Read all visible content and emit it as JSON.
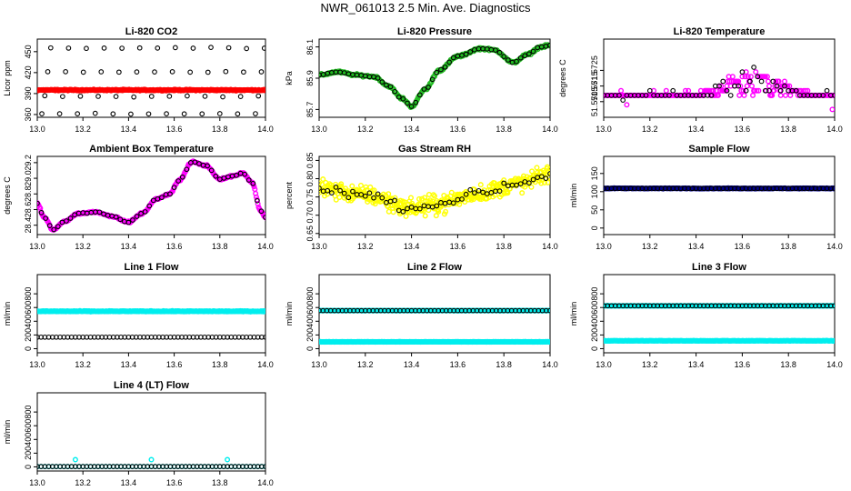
{
  "figure": {
    "title": "NWR_061013  2.5 Min. Ave. Diagnostics"
  },
  "colors": {
    "black": "#000000",
    "red": "#ff0000",
    "green": "#22bb22",
    "magenta": "#ff00ff",
    "yellow": "#ffff00",
    "navy": "#00008b",
    "cyan": "#00eeee"
  },
  "chart_data": [
    {
      "id": "co2",
      "type": "scatter",
      "title": "Li-820 CO2",
      "ylabel": "Licor ppm",
      "xlim": [
        13.0,
        14.0
      ],
      "ylim": [
        356,
        468
      ],
      "xticks": [
        "13.0",
        "13.2",
        "13.4",
        "13.6",
        "13.8",
        "14.0"
      ],
      "yticks": [
        {
          "v": 360,
          "l": "360"
        },
        {
          "v": 390,
          "l": "390"
        },
        {
          "v": 420,
          "l": "420"
        },
        {
          "v": 450,
          "l": "450"
        }
      ],
      "series": [
        {
          "name": "CO2 standards",
          "color": "black",
          "gen": "co2_levels",
          "levels": [
            361,
            386,
            421,
            455
          ]
        },
        {
          "name": "CO2 ambient",
          "color": "red",
          "gen": "flat_band",
          "base": 395,
          "noise": 1.2
        }
      ]
    },
    {
      "id": "pressure",
      "type": "scatter",
      "title": "Li-820 Pressure",
      "ylabel": "kPa",
      "xlim": [
        13.0,
        14.0
      ],
      "ylim": [
        85.65,
        86.15
      ],
      "xticks": [
        "13.0",
        "13.2",
        "13.4",
        "13.6",
        "13.8",
        "14.0"
      ],
      "yticks": [
        {
          "v": 85.7,
          "l": "85.7"
        },
        {
          "v": 85.9,
          "l": "85.9"
        },
        {
          "v": 86.1,
          "l": "86.1"
        }
      ],
      "series": [
        {
          "name": "pressure",
          "color": "green",
          "gen": "curve",
          "jitter": 0.01,
          "knots": [
            [
              13.0,
              85.92
            ],
            [
              13.08,
              85.94
            ],
            [
              13.16,
              85.92
            ],
            [
              13.24,
              85.91
            ],
            [
              13.3,
              85.85
            ],
            [
              13.36,
              85.77
            ],
            [
              13.4,
              85.72
            ],
            [
              13.46,
              85.83
            ],
            [
              13.52,
              85.95
            ],
            [
              13.6,
              86.04
            ],
            [
              13.7,
              86.09
            ],
            [
              13.76,
              86.08
            ],
            [
              13.84,
              86.0
            ],
            [
              13.9,
              86.05
            ],
            [
              13.96,
              86.1
            ],
            [
              14.0,
              86.11
            ]
          ]
        },
        {
          "name": "pressure markers",
          "color": "black",
          "gen": "curve_sparse",
          "of": 0
        }
      ]
    },
    {
      "id": "licor_temp",
      "type": "scatter",
      "title": "Li-820 Temperature",
      "ylabel": "degrees C",
      "xlim": [
        13.0,
        14.0
      ],
      "ylim": [
        51.5695,
        51.5745
      ],
      "xticks": [
        "13.0",
        "13.2",
        "13.4",
        "13.6",
        "13.8",
        "14.0"
      ],
      "yticks": [
        {
          "v": 51.5705,
          "l": "51.5705"
        },
        {
          "v": 51.5715,
          "l": "51.5715"
        },
        {
          "v": 51.5725,
          "l": "51.5725"
        }
      ],
      "series": [
        {
          "name": "temperature",
          "color": "magenta",
          "gen": "quantized",
          "base": 51.5709,
          "step": 0.0003
        },
        {
          "name": "temperature markers",
          "color": "black",
          "gen": "quantized_sparse",
          "base": 51.5709,
          "step": 0.0003
        }
      ]
    },
    {
      "id": "box_temp",
      "type": "scatter",
      "title": "Ambient Box Temperature",
      "ylabel": "degrees C",
      "xlim": [
        13.0,
        14.0
      ],
      "ylim": [
        28.28,
        29.28
      ],
      "xticks": [
        "13.0",
        "13.2",
        "13.4",
        "13.6",
        "13.8",
        "14.0"
      ],
      "yticks": [
        {
          "v": 28.4,
          "l": "28.4"
        },
        {
          "v": 28.6,
          "l": "28.6"
        },
        {
          "v": 28.8,
          "l": "28.8"
        },
        {
          "v": 29.0,
          "l": "29.0"
        },
        {
          "v": 29.2,
          "l": "29.2"
        }
      ],
      "series": [
        {
          "name": "box temperature",
          "color": "magenta",
          "gen": "curve",
          "jitter": 0.015,
          "knots": [
            [
              13.0,
              28.68
            ],
            [
              13.03,
              28.5
            ],
            [
              13.07,
              28.34
            ],
            [
              13.12,
              28.45
            ],
            [
              13.18,
              28.55
            ],
            [
              13.26,
              28.57
            ],
            [
              13.32,
              28.52
            ],
            [
              13.4,
              28.44
            ],
            [
              13.46,
              28.55
            ],
            [
              13.52,
              28.73
            ],
            [
              13.58,
              28.8
            ],
            [
              13.62,
              28.97
            ],
            [
              13.68,
              29.21
            ],
            [
              13.74,
              29.16
            ],
            [
              13.8,
              28.99
            ],
            [
              13.86,
              29.03
            ],
            [
              13.9,
              29.07
            ],
            [
              13.94,
              28.95
            ],
            [
              13.98,
              28.58
            ],
            [
              14.0,
              28.5
            ]
          ]
        },
        {
          "name": "box temperature markers",
          "color": "black",
          "gen": "curve_sparse",
          "of": 0
        }
      ]
    },
    {
      "id": "rh",
      "type": "scatter",
      "title": "Gas Stream RH",
      "ylabel": "percent",
      "xlim": [
        13.0,
        14.0
      ],
      "ylim": [
        0.647,
        0.861
      ],
      "xticks": [
        "13.0",
        "13.2",
        "13.4",
        "13.6",
        "13.8",
        "14.0"
      ],
      "yticks": [
        {
          "v": 0.65,
          "l": "0.65"
        },
        {
          "v": 0.7,
          "l": "0.70"
        },
        {
          "v": 0.75,
          "l": "0.75"
        },
        {
          "v": 0.8,
          "l": "0.80"
        },
        {
          "v": 0.85,
          "l": "0.85"
        }
      ],
      "series": [
        {
          "name": "relative humidity",
          "color": "yellow",
          "gen": "noisy_curve",
          "spread": 0.035,
          "knots": [
            [
              13.0,
              0.775
            ],
            [
              13.2,
              0.755
            ],
            [
              13.4,
              0.72
            ],
            [
              13.5,
              0.73
            ],
            [
              13.7,
              0.76
            ],
            [
              13.85,
              0.785
            ],
            [
              14.0,
              0.81
            ]
          ]
        },
        {
          "name": "relative humidity markers",
          "color": "black",
          "gen": "curve_sparse_noisy",
          "of": 0,
          "spread": 0.018
        }
      ]
    },
    {
      "id": "sample_flow",
      "type": "scatter",
      "title": "Sample Flow",
      "ylabel": "ml/min",
      "xlim": [
        13.0,
        14.0
      ],
      "ylim": [
        -18,
        197
      ],
      "xticks": [
        "13.0",
        "13.2",
        "13.4",
        "13.6",
        "13.8",
        "14.0"
      ],
      "yticks": [
        {
          "v": 0,
          "l": "0"
        },
        {
          "v": 50,
          "l": "50"
        },
        {
          "v": 100,
          "l": "100"
        },
        {
          "v": 150,
          "l": "150"
        }
      ],
      "series": [
        {
          "name": "sample flow",
          "color": "navy",
          "gen": "flat_band",
          "base": 109,
          "noise": 1.2
        },
        {
          "name": "sample flow markers",
          "color": "black",
          "gen": "flat_sparse",
          "base": 109
        }
      ]
    },
    {
      "id": "line1",
      "type": "scatter",
      "title": "Line 1 Flow",
      "ylabel": "ml/min",
      "xlim": [
        13.0,
        14.0
      ],
      "ylim": [
        -60,
        1080
      ],
      "xticks": [
        "13.0",
        "13.2",
        "13.4",
        "13.6",
        "13.8",
        "14.0"
      ],
      "yticks": [
        {
          "v": 0,
          "l": "0"
        },
        {
          "v": 200,
          "l": "200"
        },
        {
          "v": 400,
          "l": "400"
        },
        {
          "v": 600,
          "l": "600"
        },
        {
          "v": 800,
          "l": "800"
        }
      ],
      "series": [
        {
          "name": "line 1 cyan",
          "color": "cyan",
          "gen": "flat_band",
          "base": 545,
          "noise": 8
        },
        {
          "name": "line 1 black",
          "color": "black",
          "gen": "flat_sparse",
          "base": 168
        }
      ]
    },
    {
      "id": "line2",
      "type": "scatter",
      "title": "Line 2 Flow",
      "ylabel": "ml/min",
      "xlim": [
        13.0,
        14.0
      ],
      "ylim": [
        -60,
        1080
      ],
      "xticks": [
        "13.0",
        "13.2",
        "13.4",
        "13.6",
        "13.8",
        "14.0"
      ],
      "yticks": [
        {
          "v": 0,
          "l": "0"
        },
        {
          "v": 200,
          "l": "200"
        },
        {
          "v": 400,
          "l": "400"
        },
        {
          "v": 600,
          "l": "600"
        },
        {
          "v": 800,
          "l": "800"
        }
      ],
      "series": [
        {
          "name": "line 2 cyan",
          "color": "cyan",
          "gen": "flat_band",
          "base": 100,
          "noise": 4
        },
        {
          "name": "line 2 cyan upper",
          "color": "cyan",
          "gen": "flat_band",
          "base": 555,
          "noise": 3
        },
        {
          "name": "line 2 black",
          "color": "black",
          "gen": "flat_sparse",
          "base": 555
        }
      ]
    },
    {
      "id": "line3",
      "type": "scatter",
      "title": "Line 3 Flow",
      "ylabel": "ml/min",
      "xlim": [
        13.0,
        14.0
      ],
      "ylim": [
        -60,
        1080
      ],
      "xticks": [
        "13.0",
        "13.2",
        "13.4",
        "13.6",
        "13.8",
        "14.0"
      ],
      "yticks": [
        {
          "v": 0,
          "l": "0"
        },
        {
          "v": 200,
          "l": "200"
        },
        {
          "v": 400,
          "l": "400"
        },
        {
          "v": 600,
          "l": "600"
        },
        {
          "v": 800,
          "l": "800"
        }
      ],
      "series": [
        {
          "name": "line 3 cyan",
          "color": "cyan",
          "gen": "flat_band",
          "base": 115,
          "noise": 4
        },
        {
          "name": "line 3 cyan upper",
          "color": "cyan",
          "gen": "flat_band",
          "base": 625,
          "noise": 3
        },
        {
          "name": "line 3 black",
          "color": "black",
          "gen": "flat_sparse",
          "base": 625
        }
      ]
    },
    {
      "id": "line4",
      "type": "scatter",
      "title": "Line 4 (LT) Flow",
      "ylabel": "ml/min",
      "xlim": [
        13.0,
        14.0
      ],
      "ylim": [
        -60,
        1080
      ],
      "xticks": [
        "13.0",
        "13.2",
        "13.4",
        "13.6",
        "13.8",
        "14.0"
      ],
      "yticks": [
        {
          "v": 0,
          "l": "0"
        },
        {
          "v": 200,
          "l": "200"
        },
        {
          "v": 400,
          "l": "400"
        },
        {
          "v": 600,
          "l": "600"
        },
        {
          "v": 800,
          "l": "800"
        }
      ],
      "series": [
        {
          "name": "line 4 cyan",
          "color": "cyan",
          "gen": "flat_sparse",
          "base": 5
        },
        {
          "name": "line 4 black",
          "color": "black",
          "gen": "flat_sparse",
          "base": 5
        },
        {
          "name": "line 4 spikes",
          "color": "cyan",
          "gen": "points",
          "points": [
            [
              13.167,
              105
            ],
            [
              13.5,
              105
            ],
            [
              13.833,
              105
            ]
          ]
        }
      ]
    }
  ]
}
